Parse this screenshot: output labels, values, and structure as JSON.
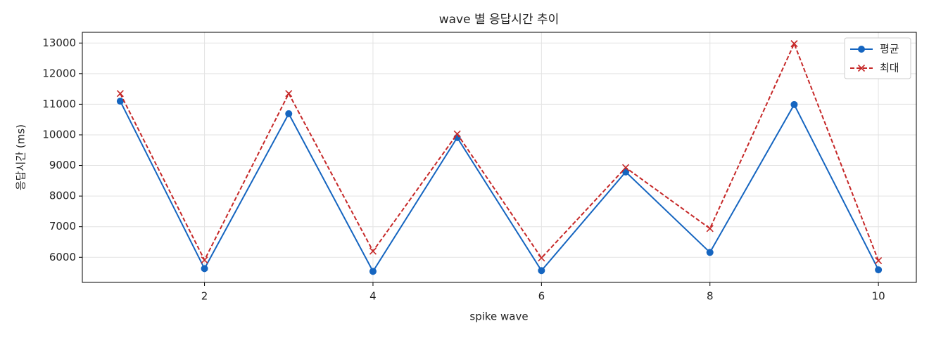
{
  "chart_data": {
    "type": "line",
    "title": "wave 별 응답시간 추이",
    "x_label": "spike wave",
    "y_label": "응답시간 (ms)",
    "x": [
      1,
      2,
      3,
      4,
      5,
      6,
      7,
      8,
      9,
      10
    ],
    "series": [
      {
        "name": "평균",
        "color": "#1565c0",
        "marker": "o",
        "dash": "solid",
        "values": [
          11100,
          5630,
          10690,
          5540,
          9910,
          5565,
          8790,
          6160,
          10990,
          5590
        ]
      },
      {
        "name": "최대",
        "color": "#c62828",
        "marker": "x",
        "dash": "dashed",
        "values": [
          11350,
          5910,
          11350,
          6200,
          10030,
          5980,
          8930,
          6940,
          12980,
          5890
        ]
      }
    ],
    "xlim": [
      0.55,
      10.45
    ],
    "xticks": [
      2,
      4,
      6,
      8,
      10
    ],
    "ylim": [
      5180,
      13350
    ],
    "yticks": [
      6000,
      7000,
      8000,
      9000,
      10000,
      11000,
      12000,
      13000
    ],
    "grid": true,
    "legend": "upper right"
  }
}
